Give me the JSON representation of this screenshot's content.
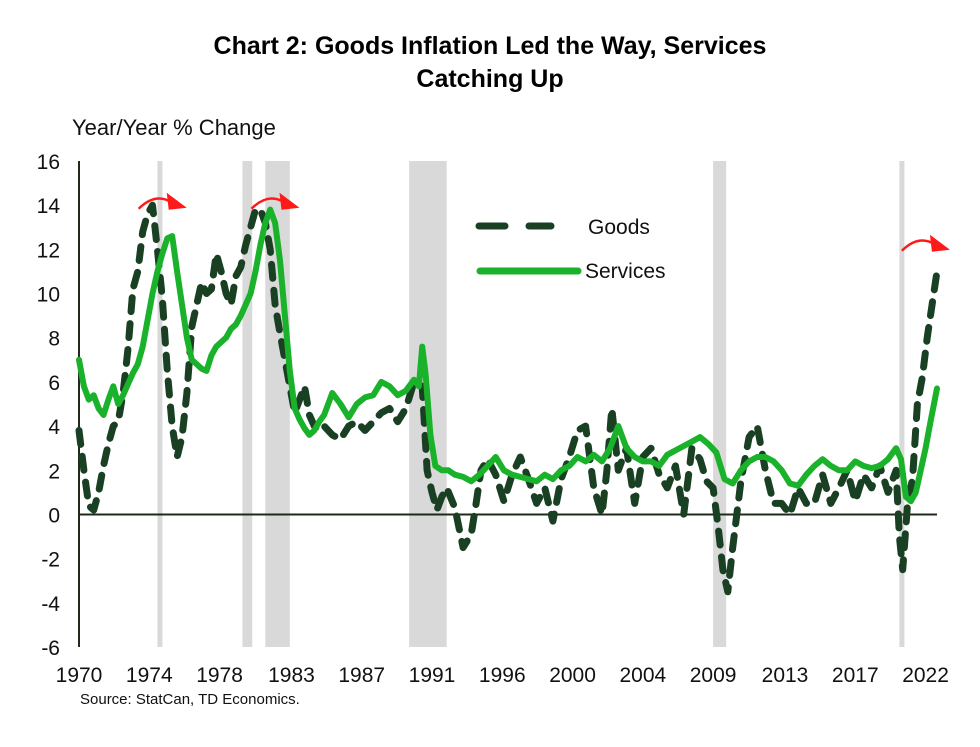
{
  "chart_data": {
    "type": "line",
    "title": "Chart 2: Goods Inflation Led the Way, Services Catching Up",
    "title_lines": [
      "Chart 2: Goods Inflation Led the Way, Services",
      "Catching Up"
    ],
    "ylabel": "Year/Year % Change",
    "xlabel": "",
    "source": "Source: StatCan, TD Economics.",
    "ylim": [
      -6,
      16
    ],
    "xlim": [
      1970,
      2022.5
    ],
    "yticks": [
      16,
      14,
      12,
      10,
      8,
      6,
      4,
      2,
      0,
      -2,
      -4,
      -6
    ],
    "xticks": [
      "1970",
      "1974",
      "1978",
      "1983",
      "1987",
      "1991",
      "1996",
      "2000",
      "2004",
      "2009",
      "2013",
      "2017",
      "2022"
    ],
    "xtick_years": [
      1970,
      1974.3,
      1978.6,
      1983,
      1987.3,
      1991.6,
      1995.9,
      2000.2,
      2004.5,
      2008.8,
      2013.2,
      2017.5,
      2021.8
    ],
    "legend": {
      "position": "top-center",
      "entries": [
        "Goods",
        "Services"
      ]
    },
    "recessions": [
      [
        1974.8,
        1975.1
      ],
      [
        1980.0,
        1980.6
      ],
      [
        1981.4,
        1982.9
      ],
      [
        1990.2,
        1992.5
      ],
      [
        2008.8,
        2009.6
      ],
      [
        2020.2,
        2020.5
      ]
    ],
    "annotations": [
      {
        "type": "red-curved-arrow",
        "year": 1975.0,
        "value": 14.2
      },
      {
        "type": "red-curved-arrow",
        "year": 1981.9,
        "value": 14.2
      },
      {
        "type": "red-curved-arrow",
        "year": 2021.7,
        "value": 12.3
      }
    ],
    "series": [
      {
        "name": "Goods",
        "style": "dashed",
        "color": "#1a4024",
        "x": [
          1970.0,
          1970.3,
          1970.6,
          1970.9,
          1971.2,
          1971.5,
          1971.8,
          1972.1,
          1972.4,
          1972.7,
          1973.0,
          1973.3,
          1973.6,
          1973.9,
          1974.2,
          1974.5,
          1974.8,
          1975.1,
          1975.4,
          1975.7,
          1976.0,
          1976.3,
          1976.6,
          1976.9,
          1977.2,
          1977.5,
          1977.8,
          1978.1,
          1978.4,
          1978.7,
          1979.0,
          1979.3,
          1979.6,
          1979.9,
          1980.2,
          1980.5,
          1980.8,
          1981.1,
          1981.4,
          1981.7,
          1982.0,
          1982.3,
          1982.6,
          1982.9,
          1983.2,
          1983.5,
          1983.8,
          1984.1,
          1984.4,
          1984.7,
          1985.0,
          1985.5,
          1986.0,
          1986.5,
          1987.0,
          1987.5,
          1988.0,
          1988.5,
          1989.0,
          1989.5,
          1990.0,
          1990.5,
          1991.0,
          1991.3,
          1991.6,
          1991.9,
          1992.2,
          1992.5,
          1993.0,
          1993.5,
          1994.0,
          1994.3,
          1994.6,
          1995.0,
          1995.5,
          1996.0,
          1996.5,
          1997.0,
          1997.5,
          1998.0,
          1998.5,
          1999.0,
          1999.5,
          2000.0,
          2000.5,
          2001.0,
          2001.5,
          2002.0,
          2002.3,
          2002.6,
          2003.0,
          2003.5,
          2004.0,
          2004.5,
          2005.0,
          2005.5,
          2006.0,
          2006.5,
          2007.0,
          2007.5,
          2008.0,
          2008.4,
          2008.8,
          2009.1,
          2009.4,
          2009.7,
          2010.0,
          2010.5,
          2011.0,
          2011.5,
          2012.0,
          2012.5,
          2013.0,
          2013.5,
          2014.0,
          2014.5,
          2015.0,
          2015.5,
          2016.0,
          2016.5,
          2017.0,
          2017.5,
          2018.0,
          2018.5,
          2019.0,
          2019.5,
          2020.0,
          2020.2,
          2020.4,
          2020.7,
          2021.0,
          2021.3,
          2021.6,
          2021.9,
          2022.2,
          2022.5
        ],
        "values": [
          3.8,
          2.0,
          0.4,
          0.2,
          1.0,
          2.2,
          3.2,
          4.0,
          4.2,
          5.5,
          7.5,
          10.2,
          11.0,
          12.8,
          13.6,
          14.0,
          12.0,
          9.8,
          6.5,
          4.0,
          2.6,
          3.5,
          5.5,
          8.5,
          9.5,
          10.5,
          10.0,
          10.2,
          11.8,
          11.0,
          10.0,
          9.5,
          10.8,
          11.2,
          12.2,
          13.0,
          13.8,
          13.8,
          13.2,
          12.0,
          9.5,
          8.2,
          7.0,
          5.8,
          4.6,
          5.2,
          5.8,
          4.5,
          4.0,
          3.8,
          4.0,
          3.6,
          3.4,
          4.0,
          4.2,
          3.8,
          4.2,
          4.6,
          4.8,
          4.2,
          4.8,
          6.0,
          5.8,
          2.0,
          1.0,
          0.2,
          0.8,
          1.2,
          0.3,
          -1.5,
          -0.9,
          0.5,
          2.0,
          2.5,
          1.8,
          0.6,
          1.8,
          2.6,
          1.6,
          0.5,
          1.2,
          -0.3,
          1.6,
          2.6,
          3.8,
          4.0,
          1.2,
          0.0,
          2.0,
          4.8,
          2.0,
          3.0,
          0.5,
          2.6,
          3.0,
          1.8,
          1.2,
          2.2,
          0.0,
          3.0,
          2.5,
          1.5,
          1.2,
          -0.5,
          -2.5,
          -3.5,
          -1.5,
          1.5,
          3.5,
          4.0,
          2.0,
          0.5,
          0.5,
          0.0,
          1.2,
          0.5,
          0.5,
          1.8,
          0.5,
          1.2,
          2.0,
          0.6,
          1.8,
          1.2,
          2.2,
          1.0,
          2.0,
          -1.0,
          -2.5,
          0.5,
          1.6,
          5.0,
          6.2,
          8.0,
          9.5,
          11.0
        ],
        "range_note": "values approximate, read from gridlines"
      },
      {
        "name": "Services",
        "style": "solid",
        "color": "#19b22a",
        "x": [
          1970.0,
          1970.3,
          1970.6,
          1970.9,
          1971.2,
          1971.5,
          1971.8,
          1972.1,
          1972.4,
          1972.7,
          1973.0,
          1973.3,
          1973.6,
          1973.9,
          1974.2,
          1974.5,
          1974.8,
          1975.1,
          1975.4,
          1975.7,
          1976.0,
          1976.3,
          1976.6,
          1976.9,
          1977.2,
          1977.5,
          1977.8,
          1978.1,
          1978.4,
          1978.7,
          1979.0,
          1979.3,
          1979.6,
          1979.9,
          1980.2,
          1980.5,
          1980.8,
          1981.1,
          1981.4,
          1981.7,
          1982.0,
          1982.3,
          1982.6,
          1982.9,
          1983.2,
          1983.5,
          1983.8,
          1984.1,
          1984.4,
          1984.7,
          1985.0,
          1985.5,
          1986.0,
          1986.5,
          1987.0,
          1987.5,
          1988.0,
          1988.5,
          1989.0,
          1989.5,
          1990.0,
          1990.5,
          1990.8,
          1991.0,
          1991.2,
          1991.5,
          1991.8,
          1992.2,
          1992.6,
          1993.0,
          1993.5,
          1994.0,
          1994.5,
          1995.0,
          1995.5,
          1996.0,
          1996.5,
          1997.0,
          1997.5,
          1998.0,
          1998.5,
          1999.0,
          1999.5,
          2000.0,
          2000.5,
          2001.0,
          2001.5,
          2002.0,
          2002.5,
          2003.0,
          2003.5,
          2004.0,
          2004.5,
          2005.0,
          2005.5,
          2006.0,
          2006.5,
          2007.0,
          2007.5,
          2008.0,
          2008.5,
          2009.0,
          2009.5,
          2010.0,
          2010.5,
          2011.0,
          2011.5,
          2012.0,
          2012.5,
          2013.0,
          2013.5,
          2014.0,
          2014.5,
          2015.0,
          2015.5,
          2016.0,
          2016.5,
          2017.0,
          2017.5,
          2018.0,
          2018.5,
          2019.0,
          2019.5,
          2020.0,
          2020.3,
          2020.6,
          2020.9,
          2021.2,
          2021.5,
          2021.8,
          2022.1,
          2022.5
        ],
        "values": [
          7.0,
          5.8,
          5.2,
          5.4,
          4.8,
          4.5,
          5.2,
          5.8,
          5.0,
          5.4,
          5.9,
          6.4,
          6.8,
          7.6,
          8.8,
          10.0,
          11.0,
          11.8,
          12.5,
          12.6,
          11.0,
          9.5,
          8.0,
          7.0,
          6.8,
          6.6,
          6.5,
          7.2,
          7.6,
          7.8,
          8.0,
          8.4,
          8.6,
          9.0,
          9.5,
          10.0,
          11.0,
          12.2,
          13.2,
          13.8,
          13.2,
          11.5,
          9.0,
          6.5,
          4.8,
          4.3,
          3.9,
          3.6,
          3.8,
          4.2,
          4.5,
          5.5,
          5.0,
          4.4,
          5.0,
          5.3,
          5.4,
          6.0,
          5.8,
          5.4,
          5.6,
          6.1,
          5.8,
          7.6,
          6.4,
          3.6,
          2.2,
          2.0,
          2.0,
          1.8,
          1.7,
          1.5,
          1.8,
          2.2,
          2.6,
          2.0,
          1.8,
          1.7,
          1.6,
          1.5,
          1.8,
          1.6,
          2.0,
          2.2,
          2.6,
          2.4,
          2.7,
          2.4,
          3.0,
          4.0,
          3.0,
          2.6,
          2.4,
          2.4,
          2.2,
          2.7,
          2.9,
          3.1,
          3.3,
          3.5,
          3.2,
          2.8,
          1.6,
          1.4,
          2.0,
          2.4,
          2.6,
          2.6,
          2.4,
          2.0,
          1.4,
          1.3,
          1.8,
          2.2,
          2.5,
          2.2,
          2.0,
          2.0,
          2.4,
          2.2,
          2.1,
          2.2,
          2.5,
          3.0,
          2.5,
          0.8,
          0.6,
          1.0,
          2.0,
          3.0,
          4.2,
          5.7
        ]
      }
    ]
  }
}
